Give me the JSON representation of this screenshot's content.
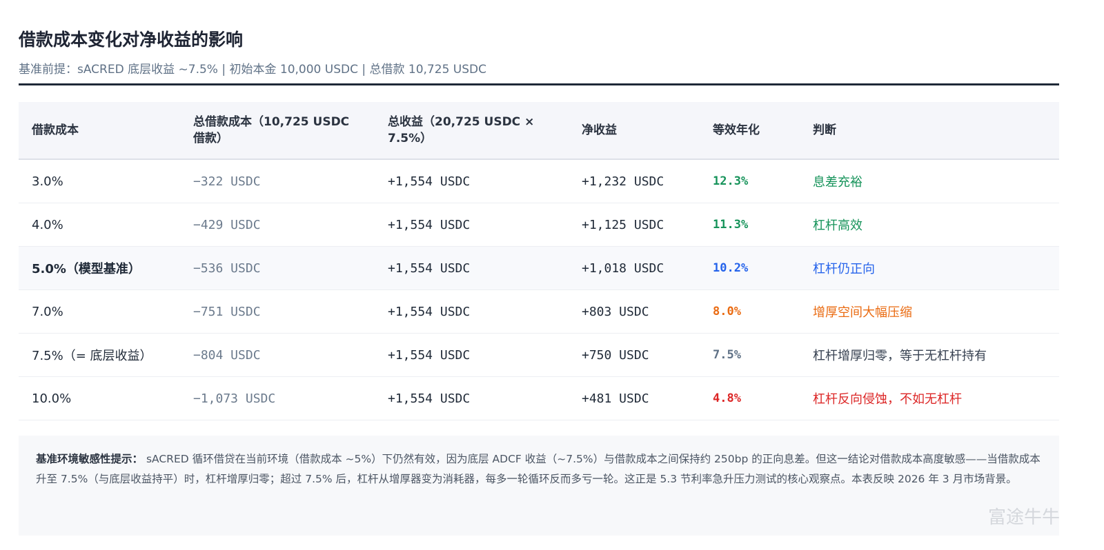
{
  "header": {
    "title": "借款成本变化对净收益的影响",
    "subtitle": "基准前提：sACRED 底层收益 ~7.5% | 初始本金 10,000 USDC | 总借款 10,725 USDC"
  },
  "table": {
    "columns": [
      "借款成本",
      "总借款成本（10,725 USDC 借款）",
      "总收益（20,725 USDC × 7.5%）",
      "净收益",
      "等效年化",
      "判断"
    ],
    "rows": [
      [
        "3.0%",
        "−322 USDC",
        "+1,554 USDC",
        "+1,232 USDC",
        "12.3%",
        "息差充裕"
      ],
      [
        "4.0%",
        "−429 USDC",
        "+1,554 USDC",
        "+1,125 USDC",
        "11.3%",
        "杠杆高效"
      ],
      [
        "5.0%（模型基准）",
        "−536 USDC",
        "+1,554 USDC",
        "+1,018 USDC",
        "10.2%",
        "杠杆仍正向"
      ],
      [
        "7.0%",
        "−751 USDC",
        "+1,554 USDC",
        "+803 USDC",
        "8.0%",
        "增厚空间大幅压缩"
      ],
      [
        "7.5%（= 底层收益）",
        "−804 USDC",
        "+1,554 USDC",
        "+750 USDC",
        "7.5%",
        "杠杆增厚归零，等于无杠杆持有"
      ],
      [
        "10.0%",
        "−1,073 USDC",
        "+1,554 USDC",
        "+481 USDC",
        "4.8%",
        "杠杆反向侵蚀，不如无杠杆"
      ]
    ],
    "annual_colors": [
      "#16935a",
      "#16935a",
      "#2563eb",
      "#ea6b12",
      "#5f7186",
      "#dc2626"
    ],
    "judgment_colors": [
      "#16935a",
      "#16935a",
      "#2563eb",
      "#ea6b12",
      "#374151",
      "#dc2626"
    ],
    "highlight_row": 2
  },
  "note": {
    "lead": "基准环境敏感性提示：",
    "text": "sACRED 循环借贷在当前环境（借款成本 ~5%）下仍然有效，因为底层 ADCF 收益（~7.5%）与借款成本之间保持约 250bp 的正向息差。但这一结论对借款成本高度敏感——当借款成本升至 7.5%（与底层收益持平）时，杠杆增厚归零；超过 7.5% 后，杠杆从增厚器变为消耗器，每多一轮循环反而多亏一轮。这正是 5.3 节利率急升压力测试的核心观察点。本表反映 2026 年 3 月市场背景。"
  },
  "watermark": "富途牛牛"
}
